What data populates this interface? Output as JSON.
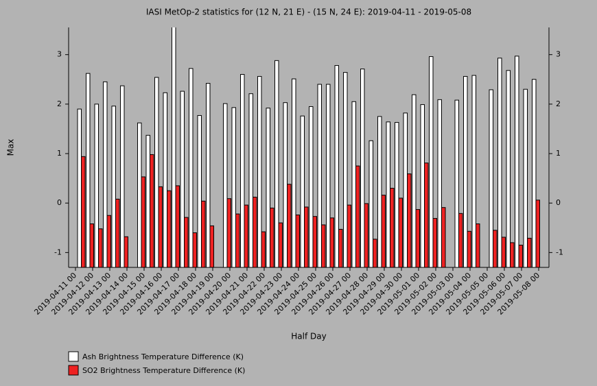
{
  "chart_data": {
    "type": "bar",
    "title": "IASI MetOp-2 statistics for (12 N, 21 E) - (15 N, 24 E): 2019-04-11 - 2019-05-08",
    "x_label": "Half Day",
    "y_label": "Max",
    "categories": [
      "2019-04-11 00",
      null,
      "2019-04-12 00",
      null,
      "2019-04-13 00",
      null,
      "2019-04-14 00",
      null,
      "2019-04-15 00",
      null,
      "2019-04-16 00",
      null,
      "2019-04-17 00",
      null,
      "2019-04-18 00",
      null,
      "2019-04-19 00",
      null,
      "2019-04-20 00",
      null,
      "2019-04-21 00",
      null,
      "2019-04-22 00",
      null,
      "2019-04-23 00",
      null,
      "2019-04-24 00",
      null,
      "2019-04-25 00",
      null,
      "2019-04-26 00",
      null,
      "2019-04-27 00",
      null,
      "2019-04-28 00",
      null,
      "2019-04-29 00",
      null,
      "2019-04-30 00",
      null,
      "2019-05-01 00",
      null,
      "2019-05-02 00",
      null,
      "2019-05-03 00",
      null,
      "2019-05-04 00",
      null,
      "2019-05-05 00",
      null,
      "2019-05-06 00",
      null,
      "2019-05-07 00",
      null,
      "2019-05-08 00"
    ],
    "series": [
      {
        "name": "Ash Brightness Temperature Difference (K)",
        "color": "#ffffff",
        "values": [
          1.9,
          2.62,
          2.0,
          2.45,
          1.96,
          2.37,
          null,
          1.62,
          1.37,
          2.54,
          2.23,
          3.6,
          2.26,
          2.72,
          1.77,
          2.42,
          null,
          2.01,
          1.93,
          2.6,
          2.21,
          2.56,
          1.92,
          2.88,
          2.03,
          2.51,
          1.76,
          1.95,
          2.4,
          2.4,
          2.78,
          2.64,
          2.05,
          2.71,
          1.26,
          1.75,
          1.64,
          1.63,
          1.82,
          2.19,
          1.99,
          2.96,
          2.09,
          null,
          2.08,
          2.56,
          2.58,
          null,
          2.29,
          2.93,
          2.68,
          2.97,
          2.3,
          2.5,
          null
        ]
      },
      {
        "name": "SO2 Brightness Temperature Difference (K)",
        "color": "#ee2222",
        "values": [
          0.94,
          -0.42,
          -0.52,
          -0.25,
          0.08,
          -0.68,
          null,
          0.53,
          0.98,
          0.33,
          0.25,
          0.35,
          -0.29,
          -0.6,
          0.04,
          -0.46,
          null,
          0.09,
          -0.22,
          -0.04,
          0.12,
          -0.58,
          -0.1,
          -0.4,
          0.38,
          -0.24,
          -0.08,
          -0.27,
          -0.44,
          -0.3,
          -0.53,
          -0.04,
          0.75,
          -0.01,
          -0.73,
          0.16,
          0.3,
          0.1,
          0.59,
          -0.13,
          0.81,
          -0.31,
          -0.09,
          null,
          -0.21,
          -0.57,
          -0.42,
          null,
          -0.55,
          -0.69,
          -0.8,
          -0.85,
          -0.71,
          0.06,
          null
        ]
      }
    ],
    "ylim": [
      -1.3,
      3.55
    ],
    "yticks": [
      -1,
      0,
      1,
      2,
      3
    ]
  }
}
